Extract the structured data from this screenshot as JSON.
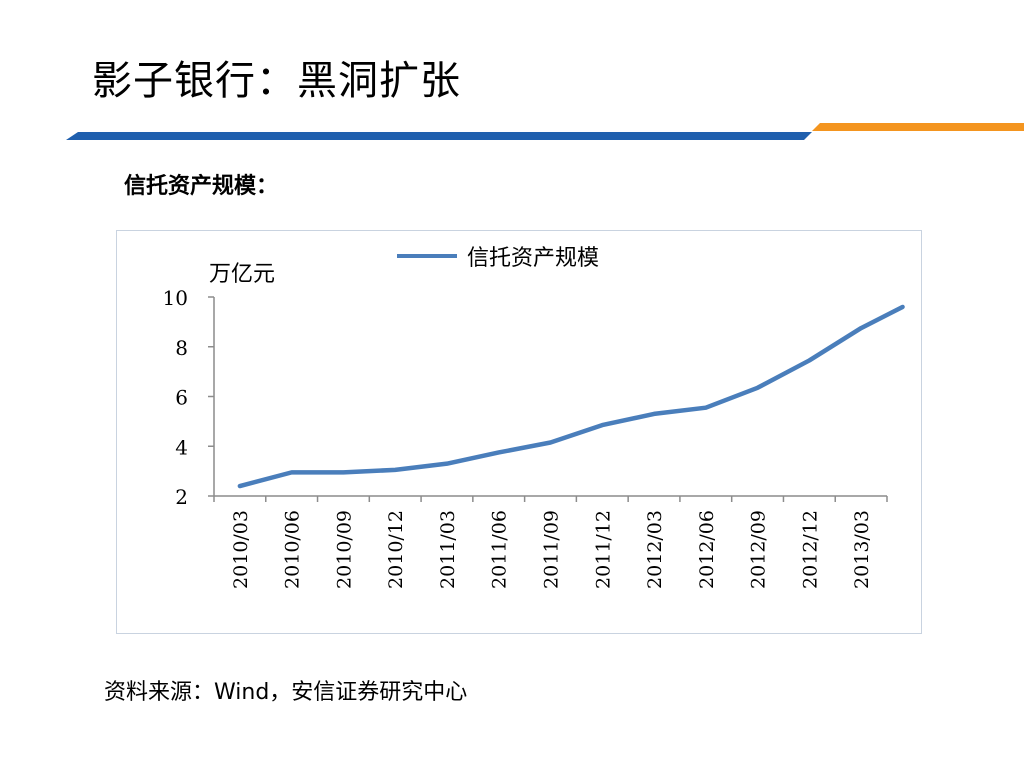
{
  "slide": {
    "title": "影子银行：黑洞扩张",
    "subtitle": "信托资产规模：",
    "source": "资料来源：Wind，安信证券研究中心"
  },
  "colors": {
    "blue_bar": "#1f5fae",
    "orange_bar": "#f4951f",
    "series": "#4a7ebb",
    "axis": "#8c8c8c",
    "frame_border": "#c9d3e0"
  },
  "chart_data": {
    "type": "line",
    "unit_label": "万亿元",
    "categories": [
      "2010/03",
      "2010/06",
      "2010/09",
      "2010/12",
      "2011/03",
      "2011/06",
      "2011/09",
      "2011/12",
      "2012/03",
      "2012/06",
      "2012/09",
      "2012/12",
      "2013/03"
    ],
    "series": [
      {
        "name": "信托资产规模",
        "values": [
          2.4,
          2.95,
          2.95,
          3.05,
          3.3,
          3.75,
          4.15,
          4.85,
          5.3,
          5.55,
          6.35,
          7.45,
          8.75
        ]
      }
    ],
    "extra_point_after_last": 9.6,
    "ylim": [
      2,
      10
    ],
    "yticks": [
      2,
      4,
      6,
      8,
      10
    ],
    "legend_position": "top-center",
    "grid": false
  }
}
